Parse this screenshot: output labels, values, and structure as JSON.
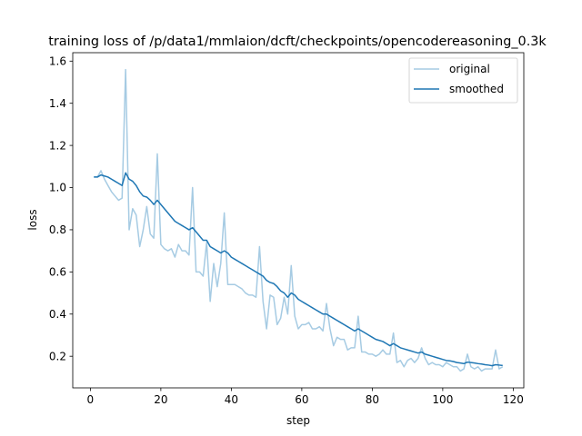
{
  "chart_data": {
    "type": "line",
    "title": "training loss of /p/data1/mmlaion/dcft/checkpoints/opencodereasoning_0.3k",
    "xlabel": "step",
    "ylabel": "loss",
    "xlim": [
      -5,
      123
    ],
    "ylim": [
      0.05,
      1.64
    ],
    "xticks": [
      0,
      20,
      40,
      60,
      80,
      100,
      120
    ],
    "yticks": [
      0.2,
      0.4,
      0.6,
      0.8,
      1.0,
      1.2,
      1.4,
      1.6
    ],
    "xtick_labels": [
      "0",
      "20",
      "40",
      "60",
      "80",
      "100",
      "120"
    ],
    "ytick_labels": [
      "0.2",
      "0.4",
      "0.6",
      "0.8",
      "1.0",
      "1.2",
      "1.4",
      "1.6"
    ],
    "grid": false,
    "legend_position": "top-right",
    "series": [
      {
        "name": "original",
        "color": "#a6cbe3",
        "x": [
          1,
          2,
          3,
          4,
          5,
          6,
          7,
          8,
          9,
          10,
          11,
          12,
          13,
          14,
          15,
          16,
          17,
          18,
          19,
          20,
          21,
          22,
          23,
          24,
          25,
          26,
          27,
          28,
          29,
          30,
          31,
          32,
          33,
          34,
          35,
          36,
          37,
          38,
          39,
          40,
          41,
          42,
          43,
          44,
          45,
          46,
          47,
          48,
          49,
          50,
          51,
          52,
          53,
          54,
          55,
          56,
          57,
          58,
          59,
          60,
          61,
          62,
          63,
          64,
          65,
          66,
          67,
          68,
          69,
          70,
          71,
          72,
          73,
          74,
          75,
          76,
          77,
          78,
          79,
          80,
          81,
          82,
          83,
          84,
          85,
          86,
          87,
          88,
          89,
          90,
          91,
          92,
          93,
          94,
          95,
          96,
          97,
          98,
          99,
          100,
          101,
          102,
          103,
          104,
          105,
          106,
          107,
          108,
          109,
          110,
          111,
          112,
          113,
          114,
          115,
          116,
          117
        ],
        "y": [
          1.05,
          1.05,
          1.08,
          1.04,
          1.01,
          0.98,
          0.96,
          0.94,
          0.95,
          1.56,
          0.8,
          0.9,
          0.87,
          0.72,
          0.8,
          0.91,
          0.78,
          0.76,
          1.16,
          0.73,
          0.71,
          0.7,
          0.71,
          0.67,
          0.73,
          0.7,
          0.7,
          0.68,
          1.0,
          0.6,
          0.6,
          0.58,
          0.74,
          0.46,
          0.64,
          0.53,
          0.64,
          0.88,
          0.54,
          0.54,
          0.54,
          0.53,
          0.52,
          0.5,
          0.49,
          0.49,
          0.48,
          0.72,
          0.46,
          0.33,
          0.49,
          0.48,
          0.35,
          0.38,
          0.48,
          0.4,
          0.63,
          0.39,
          0.33,
          0.35,
          0.35,
          0.36,
          0.33,
          0.33,
          0.34,
          0.32,
          0.45,
          0.33,
          0.25,
          0.29,
          0.28,
          0.28,
          0.23,
          0.24,
          0.24,
          0.39,
          0.22,
          0.22,
          0.21,
          0.21,
          0.2,
          0.21,
          0.23,
          0.21,
          0.21,
          0.31,
          0.17,
          0.18,
          0.15,
          0.18,
          0.19,
          0.17,
          0.19,
          0.24,
          0.19,
          0.16,
          0.17,
          0.16,
          0.16,
          0.15,
          0.17,
          0.16,
          0.15,
          0.15,
          0.13,
          0.14,
          0.21,
          0.15,
          0.14,
          0.15,
          0.13,
          0.14,
          0.14,
          0.14,
          0.23,
          0.14,
          0.15
        ]
      },
      {
        "name": "smoothed",
        "color": "#1f77b4",
        "x": [
          1,
          2,
          3,
          4,
          5,
          6,
          7,
          8,
          9,
          10,
          11,
          12,
          13,
          14,
          15,
          16,
          17,
          18,
          19,
          20,
          21,
          22,
          23,
          24,
          25,
          26,
          27,
          28,
          29,
          30,
          31,
          32,
          33,
          34,
          35,
          36,
          37,
          38,
          39,
          40,
          41,
          42,
          43,
          44,
          45,
          46,
          47,
          48,
          49,
          50,
          51,
          52,
          53,
          54,
          55,
          56,
          57,
          58,
          59,
          60,
          61,
          62,
          63,
          64,
          65,
          66,
          67,
          68,
          69,
          70,
          71,
          72,
          73,
          74,
          75,
          76,
          77,
          78,
          79,
          80,
          81,
          82,
          83,
          84,
          85,
          86,
          87,
          88,
          89,
          90,
          91,
          92,
          93,
          94,
          95,
          96,
          97,
          98,
          99,
          100,
          101,
          102,
          103,
          104,
          105,
          106,
          107,
          108,
          109,
          110,
          111,
          112,
          113,
          114,
          115,
          116,
          117
        ],
        "y": [
          1.05,
          1.05,
          1.06,
          1.055,
          1.05,
          1.04,
          1.03,
          1.02,
          1.01,
          1.07,
          1.04,
          1.03,
          1.01,
          0.98,
          0.96,
          0.955,
          0.94,
          0.92,
          0.94,
          0.92,
          0.9,
          0.88,
          0.86,
          0.84,
          0.83,
          0.82,
          0.81,
          0.8,
          0.81,
          0.79,
          0.77,
          0.75,
          0.75,
          0.72,
          0.71,
          0.7,
          0.69,
          0.7,
          0.69,
          0.67,
          0.66,
          0.65,
          0.64,
          0.63,
          0.62,
          0.61,
          0.6,
          0.59,
          0.58,
          0.56,
          0.55,
          0.545,
          0.53,
          0.51,
          0.5,
          0.48,
          0.5,
          0.49,
          0.47,
          0.46,
          0.45,
          0.44,
          0.43,
          0.42,
          0.41,
          0.4,
          0.4,
          0.39,
          0.38,
          0.37,
          0.36,
          0.35,
          0.34,
          0.33,
          0.32,
          0.33,
          0.32,
          0.31,
          0.3,
          0.29,
          0.28,
          0.275,
          0.27,
          0.26,
          0.25,
          0.26,
          0.25,
          0.24,
          0.235,
          0.23,
          0.225,
          0.22,
          0.215,
          0.22,
          0.21,
          0.205,
          0.2,
          0.195,
          0.19,
          0.185,
          0.18,
          0.178,
          0.175,
          0.17,
          0.168,
          0.165,
          0.172,
          0.17,
          0.168,
          0.165,
          0.163,
          0.16,
          0.158,
          0.155,
          0.16,
          0.158,
          0.156
        ]
      }
    ]
  }
}
